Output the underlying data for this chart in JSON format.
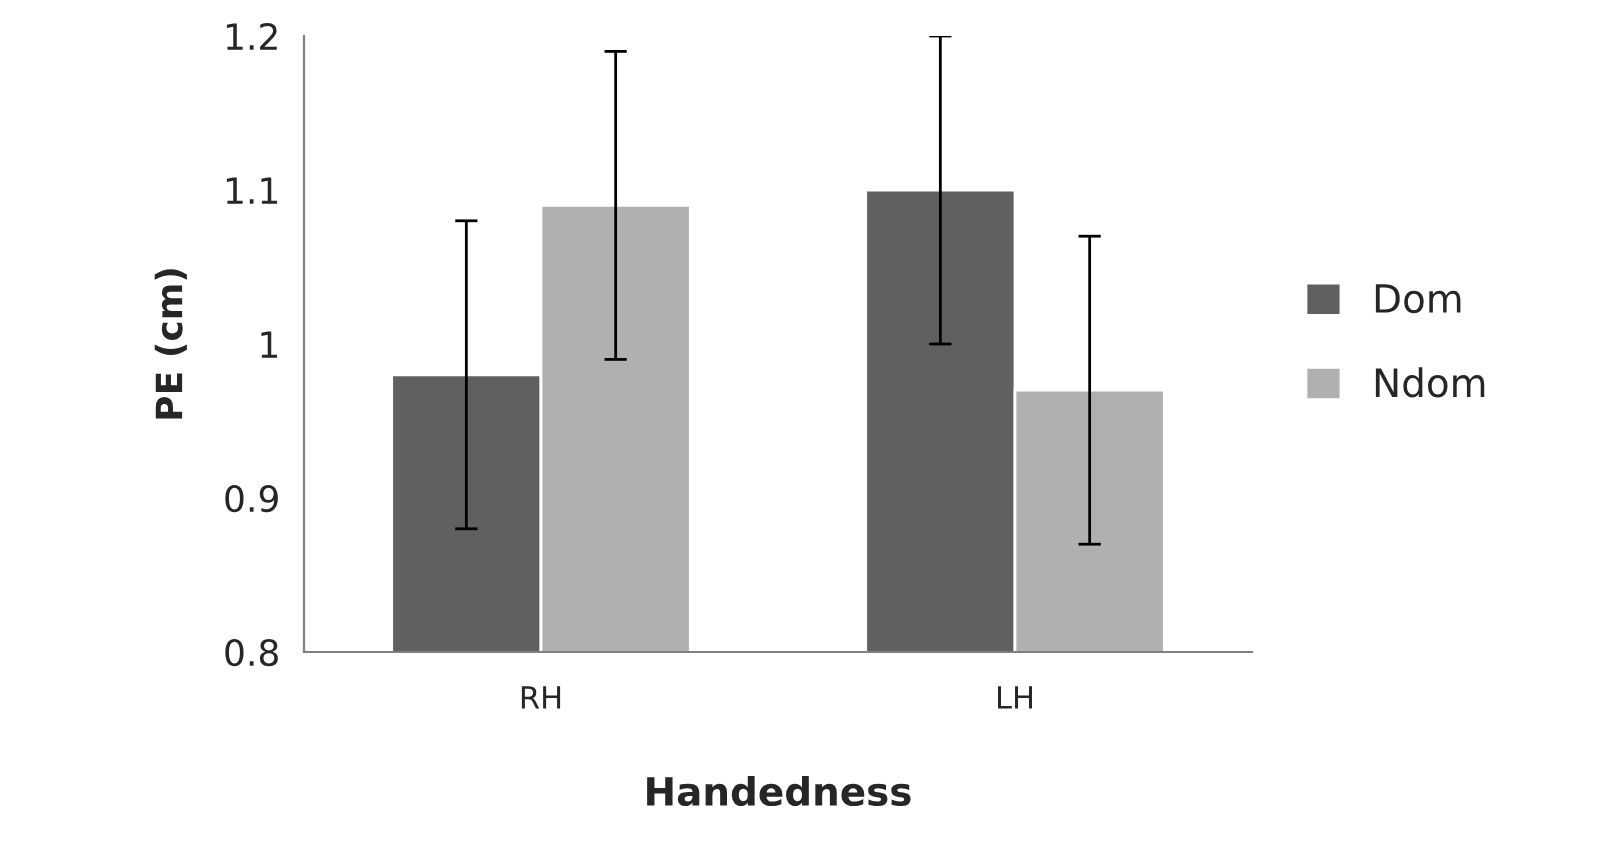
{
  "chart_data": {
    "type": "bar",
    "xlabel": "Handedness",
    "ylabel": "PE (cm)",
    "categories": [
      "RH",
      "LH"
    ],
    "series": [
      {
        "name": "Dom",
        "color": "#606060",
        "values": [
          0.98,
          1.1
        ],
        "errors": [
          0.1,
          0.1
        ]
      },
      {
        "name": "Ndom",
        "color": "#b0b0b0",
        "values": [
          1.09,
          0.97
        ],
        "errors": [
          0.1,
          0.1
        ]
      }
    ],
    "ylim": [
      0.8,
      1.2
    ],
    "yticks": [
      0.8,
      0.9,
      {
        "value": 1.0,
        "label": "1"
      },
      1.1,
      1.2
    ],
    "grid": false,
    "legend": "right"
  }
}
